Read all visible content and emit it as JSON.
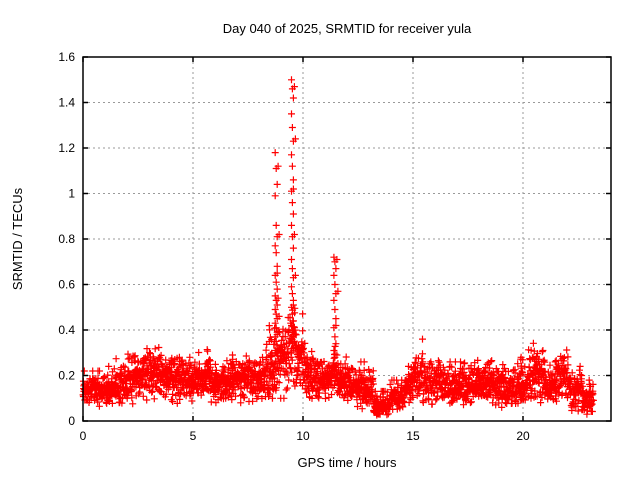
{
  "window": {
    "background": "#ffffff",
    "foreground": "#000000"
  },
  "chart_data": {
    "type": "scatter",
    "title": "Day 040 of 2025, SRMTID for receiver yula",
    "xlabel": "GPS time / hours",
    "ylabel": "SRMTID / TECUs",
    "series_name": "SRMTID",
    "xlim": [
      0,
      24
    ],
    "ylim": [
      0,
      1.6
    ],
    "xtick_values": [
      0,
      5,
      10,
      15,
      20
    ],
    "xtick_labels": [
      "0",
      "5",
      "10",
      "15",
      "20"
    ],
    "ytick_values": [
      0,
      0.2,
      0.4,
      0.6,
      0.8,
      1.0,
      1.2,
      1.4,
      1.6
    ],
    "ytick_labels": [
      "0",
      "0.2",
      "0.4",
      "0.6",
      "0.8",
      "1",
      "1.2",
      "1.4",
      "1.6"
    ],
    "grid": {
      "on": true,
      "color": "#9a9a9a",
      "dash": "2,3"
    },
    "marker": {
      "shape": "plus",
      "size": 7,
      "color": "#ff0000",
      "stroke_width": 1.2
    },
    "data_start_hour": 0.0,
    "data_end_hour": 23.2,
    "points_per_hour": 100,
    "seed": 20250409,
    "envelope_comment": "segments of the noisy baseline: [t0,t1,mean,spread,min,max] in hours / TECUs as read from the plot",
    "envelope": [
      [
        0.0,
        0.5,
        0.14,
        0.035,
        0.07,
        0.22
      ],
      [
        0.5,
        1.0,
        0.13,
        0.04,
        0.05,
        0.22
      ],
      [
        1.0,
        1.5,
        0.14,
        0.04,
        0.06,
        0.24
      ],
      [
        1.5,
        2.0,
        0.16,
        0.05,
        0.07,
        0.28
      ],
      [
        2.0,
        2.5,
        0.18,
        0.06,
        0.07,
        0.32
      ],
      [
        2.5,
        3.0,
        0.19,
        0.06,
        0.05,
        0.34
      ],
      [
        3.0,
        3.6,
        0.21,
        0.07,
        0.08,
        0.39
      ],
      [
        3.6,
        4.3,
        0.18,
        0.06,
        0.07,
        0.32
      ],
      [
        4.3,
        5.0,
        0.17,
        0.05,
        0.08,
        0.28
      ],
      [
        5.0,
        5.8,
        0.18,
        0.06,
        0.08,
        0.38
      ],
      [
        5.8,
        6.5,
        0.16,
        0.05,
        0.07,
        0.28
      ],
      [
        6.5,
        7.0,
        0.17,
        0.05,
        0.08,
        0.3
      ],
      [
        7.0,
        7.6,
        0.19,
        0.06,
        0.08,
        0.34
      ],
      [
        7.6,
        8.3,
        0.17,
        0.05,
        0.08,
        0.3
      ],
      [
        8.3,
        8.9,
        0.24,
        0.09,
        0.1,
        0.5
      ],
      [
        8.9,
        9.35,
        0.26,
        0.1,
        0.1,
        0.52
      ],
      [
        9.35,
        9.65,
        0.33,
        0.12,
        0.12,
        0.58
      ],
      [
        9.65,
        10.1,
        0.27,
        0.1,
        0.1,
        0.5
      ],
      [
        10.1,
        11.3,
        0.18,
        0.06,
        0.07,
        0.38
      ],
      [
        11.3,
        11.55,
        0.22,
        0.07,
        0.1,
        0.36
      ],
      [
        11.55,
        12.4,
        0.17,
        0.05,
        0.06,
        0.3
      ],
      [
        12.4,
        13.2,
        0.13,
        0.05,
        0.04,
        0.26
      ],
      [
        13.2,
        13.9,
        0.06,
        0.025,
        0.02,
        0.13
      ],
      [
        13.9,
        14.6,
        0.1,
        0.035,
        0.03,
        0.18
      ],
      [
        14.6,
        15.0,
        0.14,
        0.04,
        0.06,
        0.24
      ],
      [
        15.0,
        15.45,
        0.2,
        0.07,
        0.08,
        0.36
      ],
      [
        15.45,
        16.5,
        0.17,
        0.06,
        0.07,
        0.31
      ],
      [
        16.5,
        17.5,
        0.15,
        0.05,
        0.06,
        0.26
      ],
      [
        17.5,
        18.6,
        0.16,
        0.05,
        0.07,
        0.29
      ],
      [
        18.6,
        19.6,
        0.14,
        0.05,
        0.06,
        0.26
      ],
      [
        19.6,
        20.2,
        0.16,
        0.05,
        0.07,
        0.28
      ],
      [
        20.2,
        21.0,
        0.2,
        0.07,
        0.08,
        0.36
      ],
      [
        21.0,
        21.5,
        0.15,
        0.05,
        0.06,
        0.26
      ],
      [
        21.5,
        22.1,
        0.19,
        0.06,
        0.07,
        0.33
      ],
      [
        22.1,
        22.7,
        0.13,
        0.05,
        0.04,
        0.24
      ],
      [
        22.7,
        23.2,
        0.09,
        0.04,
        0.03,
        0.18
      ]
    ],
    "spikes_comment": "discrete vertical columns of markers (TID events) read off the plot",
    "spikes": [
      {
        "x": 8.78,
        "ys": [
          1.18,
          1.11,
          1.04,
          0.99,
          0.86,
          0.81,
          0.77,
          0.74,
          0.68,
          0.64,
          0.61,
          0.58,
          0.55,
          0.53,
          0.51,
          0.49,
          0.47,
          0.45,
          0.43,
          0.41,
          0.39,
          0.37,
          0.35,
          0.33,
          0.31
        ]
      },
      {
        "x": 9.52,
        "ys": [
          1.5,
          1.46,
          1.42,
          1.35,
          1.29,
          1.23,
          1.17,
          1.12,
          1.06,
          1.01,
          0.96,
          0.91,
          0.86,
          0.81,
          0.76,
          0.71,
          0.67,
          0.63,
          0.59,
          0.56,
          0.53,
          0.5,
          0.47,
          0.44,
          0.42,
          0.4,
          0.38,
          0.36,
          0.34,
          0.32,
          0.3
        ]
      },
      {
        "x": 11.45,
        "ys": [
          0.72,
          0.7,
          0.67,
          0.64,
          0.6,
          0.56,
          0.53,
          0.49,
          0.45,
          0.41,
          0.37,
          0.34,
          0.31,
          0.28
        ]
      }
    ]
  }
}
